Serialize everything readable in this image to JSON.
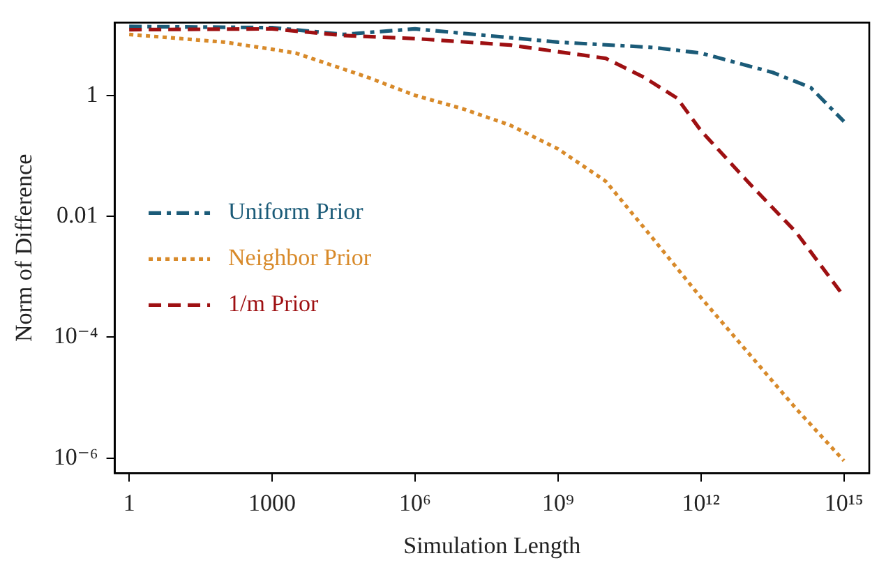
{
  "chart_data": {
    "type": "line",
    "xlabel": "Simulation Length",
    "ylabel": "Norm of Difference",
    "log": "xy",
    "grid": false,
    "legend": "left",
    "marker": "none",
    "xlim": [
      0.5,
      3400000000000000.0
    ],
    "ylim": [
      5.6e-07,
      16
    ],
    "xticks": [
      1,
      1000,
      {
        "value": 1000000.0,
        "label": "10⁶"
      },
      {
        "value": 1000000000.0,
        "label": "10⁹"
      },
      {
        "value": 1000000000000.0,
        "label": "10¹²"
      },
      {
        "value": 1000000000000000.0,
        "label": "10¹⁵"
      }
    ],
    "yticks": [
      {
        "value": 1e-06,
        "label": "10⁻⁶"
      },
      {
        "value": 0.0001,
        "label": "10⁻⁴"
      },
      0.01,
      1
    ],
    "series": [
      {
        "name": "Uniform Prior",
        "color": "#1b5b78",
        "line_style": "dashdot",
        "x": [
          1,
          1000,
          31623,
          1000000.0,
          1000000000.0,
          100000000000.0,
          1000000000000.0,
          31600000000000.0,
          200000000000000.0,
          1000000000000000.0
        ],
        "values": [
          13.8,
          13.2,
          10.2,
          12.6,
          7.6,
          6.2,
          5.0,
          2.4,
          1.35,
          0.37
        ]
      },
      {
        "name": "Neighbor Prior",
        "color": "#d88a2a",
        "line_style": "dotted",
        "x": [
          1,
          100,
          1000,
          3162,
          100000.0,
          1000000.0,
          10000000.0,
          100000000.0,
          1000000000.0,
          10000000000.0,
          100000000000.0,
          1000000000000.0,
          10000000000000.0,
          100000000000000.0,
          1000000000000000.0
        ],
        "values": [
          10.2,
          7.6,
          5.8,
          5.0,
          2.0,
          1.0,
          0.6,
          0.32,
          0.13,
          0.038,
          0.0042,
          0.00045,
          5.4e-05,
          6.5e-06,
          9e-07
        ]
      },
      {
        "name": "1/m Prior",
        "color": "#9e1012",
        "line_style": "dashed",
        "x": [
          1,
          1000,
          31623,
          1000000.0,
          100000000.0,
          10000000000.0,
          63000000000.0,
          316000000000.0,
          1000000000000.0,
          10000000000000.0,
          100000000000000.0,
          1000000000000000.0
        ],
        "values": [
          12.2,
          12.6,
          9.8,
          8.7,
          6.8,
          4.1,
          2.0,
          0.9,
          0.26,
          0.036,
          0.0054,
          0.00047
        ]
      }
    ]
  }
}
